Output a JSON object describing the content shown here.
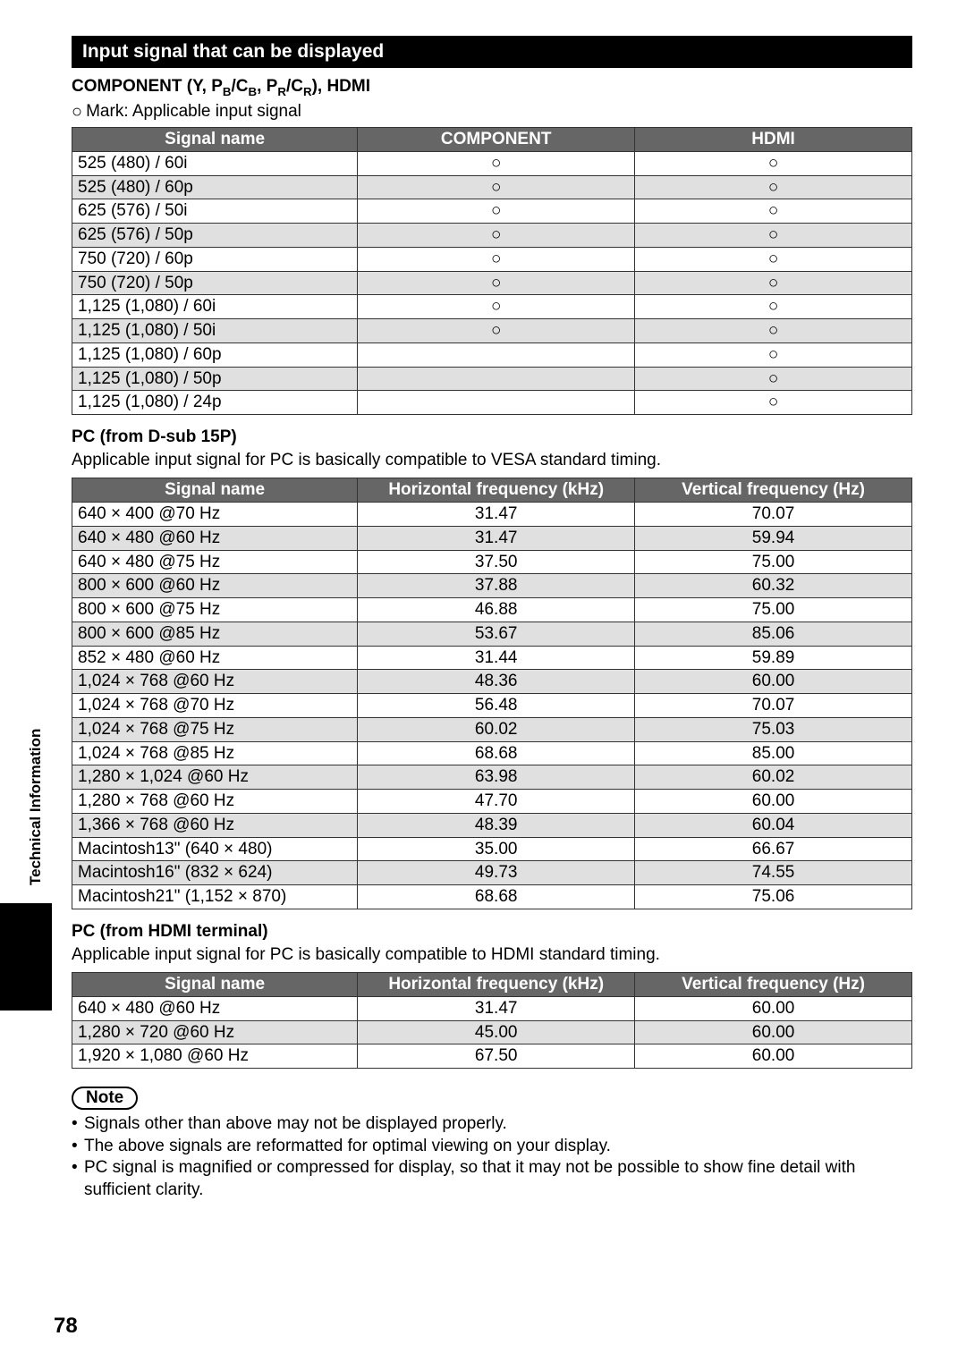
{
  "section_title": "Input signal that can be displayed",
  "component_heading_html": "COMPONENT (Y, P<sub>B</sub>/C<sub>B</sub>, P<sub>R</sub>/C<sub>R</sub>), HDMI",
  "mark_label": "Mark: Applicable input signal",
  "mark_glyph": "○",
  "table1": {
    "headers": [
      "Signal name",
      "COMPONENT",
      "HDMI"
    ],
    "col_widths": [
      "34%",
      "33%",
      "33%"
    ],
    "rows": [
      {
        "name": "525 (480) / 60i",
        "component": true,
        "hdmi": true,
        "shade": false
      },
      {
        "name": "525 (480) / 60p",
        "component": true,
        "hdmi": true,
        "shade": true
      },
      {
        "name": "625 (576) / 50i",
        "component": true,
        "hdmi": true,
        "shade": false
      },
      {
        "name": "625 (576) / 50p",
        "component": true,
        "hdmi": true,
        "shade": true
      },
      {
        "name": "750 (720) / 60p",
        "component": true,
        "hdmi": true,
        "shade": false
      },
      {
        "name": "750 (720) / 50p",
        "component": true,
        "hdmi": true,
        "shade": true
      },
      {
        "name": "1,125 (1,080) / 60i",
        "component": true,
        "hdmi": true,
        "shade": false
      },
      {
        "name": "1,125 (1,080) / 50i",
        "component": true,
        "hdmi": true,
        "shade": true
      },
      {
        "name": "1,125 (1,080) / 60p",
        "component": false,
        "hdmi": true,
        "shade": false
      },
      {
        "name": "1,125 (1,080) / 50p",
        "component": false,
        "hdmi": true,
        "shade": true
      },
      {
        "name": "1,125 (1,080) / 24p",
        "component": false,
        "hdmi": true,
        "shade": false
      }
    ]
  },
  "pc_dsub_heading": "PC (from D-sub 15P)",
  "pc_dsub_sub": "Applicable input signal for PC is basically compatible to VESA standard timing.",
  "table2": {
    "headers": [
      "Signal name",
      "Horizontal frequency (kHz)",
      "Vertical frequency (Hz)"
    ],
    "col_widths": [
      "34%",
      "33%",
      "33%"
    ],
    "rows": [
      {
        "name": "640 × 400 @70 Hz",
        "h": "31.47",
        "v": "70.07",
        "shade": false
      },
      {
        "name": "640 × 480 @60 Hz",
        "h": "31.47",
        "v": "59.94",
        "shade": true
      },
      {
        "name": "640 × 480 @75 Hz",
        "h": "37.50",
        "v": "75.00",
        "shade": false
      },
      {
        "name": "800 × 600 @60 Hz",
        "h": "37.88",
        "v": "60.32",
        "shade": true
      },
      {
        "name": "800 × 600 @75 Hz",
        "h": "46.88",
        "v": "75.00",
        "shade": false
      },
      {
        "name": "800 × 600 @85 Hz",
        "h": "53.67",
        "v": "85.06",
        "shade": true
      },
      {
        "name": "852 × 480 @60 Hz",
        "h": "31.44",
        "v": "59.89",
        "shade": false
      },
      {
        "name": "1,024 × 768 @60 Hz",
        "h": "48.36",
        "v": "60.00",
        "shade": true
      },
      {
        "name": "1,024 × 768 @70 Hz",
        "h": "56.48",
        "v": "70.07",
        "shade": false
      },
      {
        "name": "1,024 × 768 @75 Hz",
        "h": "60.02",
        "v": "75.03",
        "shade": true
      },
      {
        "name": "1,024 × 768 @85 Hz",
        "h": "68.68",
        "v": "85.00",
        "shade": false
      },
      {
        "name": "1,280 × 1,024 @60 Hz",
        "h": "63.98",
        "v": "60.02",
        "shade": true
      },
      {
        "name": "1,280 × 768 @60 Hz",
        "h": "47.70",
        "v": "60.00",
        "shade": false
      },
      {
        "name": "1,366 × 768 @60 Hz",
        "h": "48.39",
        "v": "60.04",
        "shade": true
      },
      {
        "name": "Macintosh13\" (640 × 480)",
        "h": "35.00",
        "v": "66.67",
        "shade": false
      },
      {
        "name": "Macintosh16\" (832 × 624)",
        "h": "49.73",
        "v": "74.55",
        "shade": true
      },
      {
        "name": "Macintosh21\" (1,152 × 870)",
        "h": "68.68",
        "v": "75.06",
        "shade": false
      }
    ]
  },
  "pc_hdmi_heading": "PC (from HDMI terminal)",
  "pc_hdmi_sub": "Applicable input signal for PC is basically compatible to HDMI standard timing.",
  "table3": {
    "headers": [
      "Signal name",
      "Horizontal frequency (kHz)",
      "Vertical frequency (Hz)"
    ],
    "col_widths": [
      "34%",
      "33%",
      "33%"
    ],
    "rows": [
      {
        "name": "640 × 480 @60 Hz",
        "h": "31.47",
        "v": "60.00",
        "shade": false
      },
      {
        "name": "1,280 × 720 @60 Hz",
        "h": "45.00",
        "v": "60.00",
        "shade": true
      },
      {
        "name": "1,920 × 1,080 @60 Hz",
        "h": "67.50",
        "v": "60.00",
        "shade": false
      }
    ]
  },
  "note_label": "Note",
  "notes": [
    "Signals other than above may not be displayed properly.",
    "The above signals are reformatted for optimal viewing on your display.",
    "PC signal is magnified or compressed for display, so that it may not be possible to show fine detail with sufficient clarity."
  ],
  "sidebar_label": "Technical Information",
  "page_number": "78",
  "colors": {
    "header_bg": "#666666",
    "header_fg": "#ffffff",
    "section_bg": "#000000",
    "shade_bg": "#e0e0e0",
    "border": "#333333"
  }
}
